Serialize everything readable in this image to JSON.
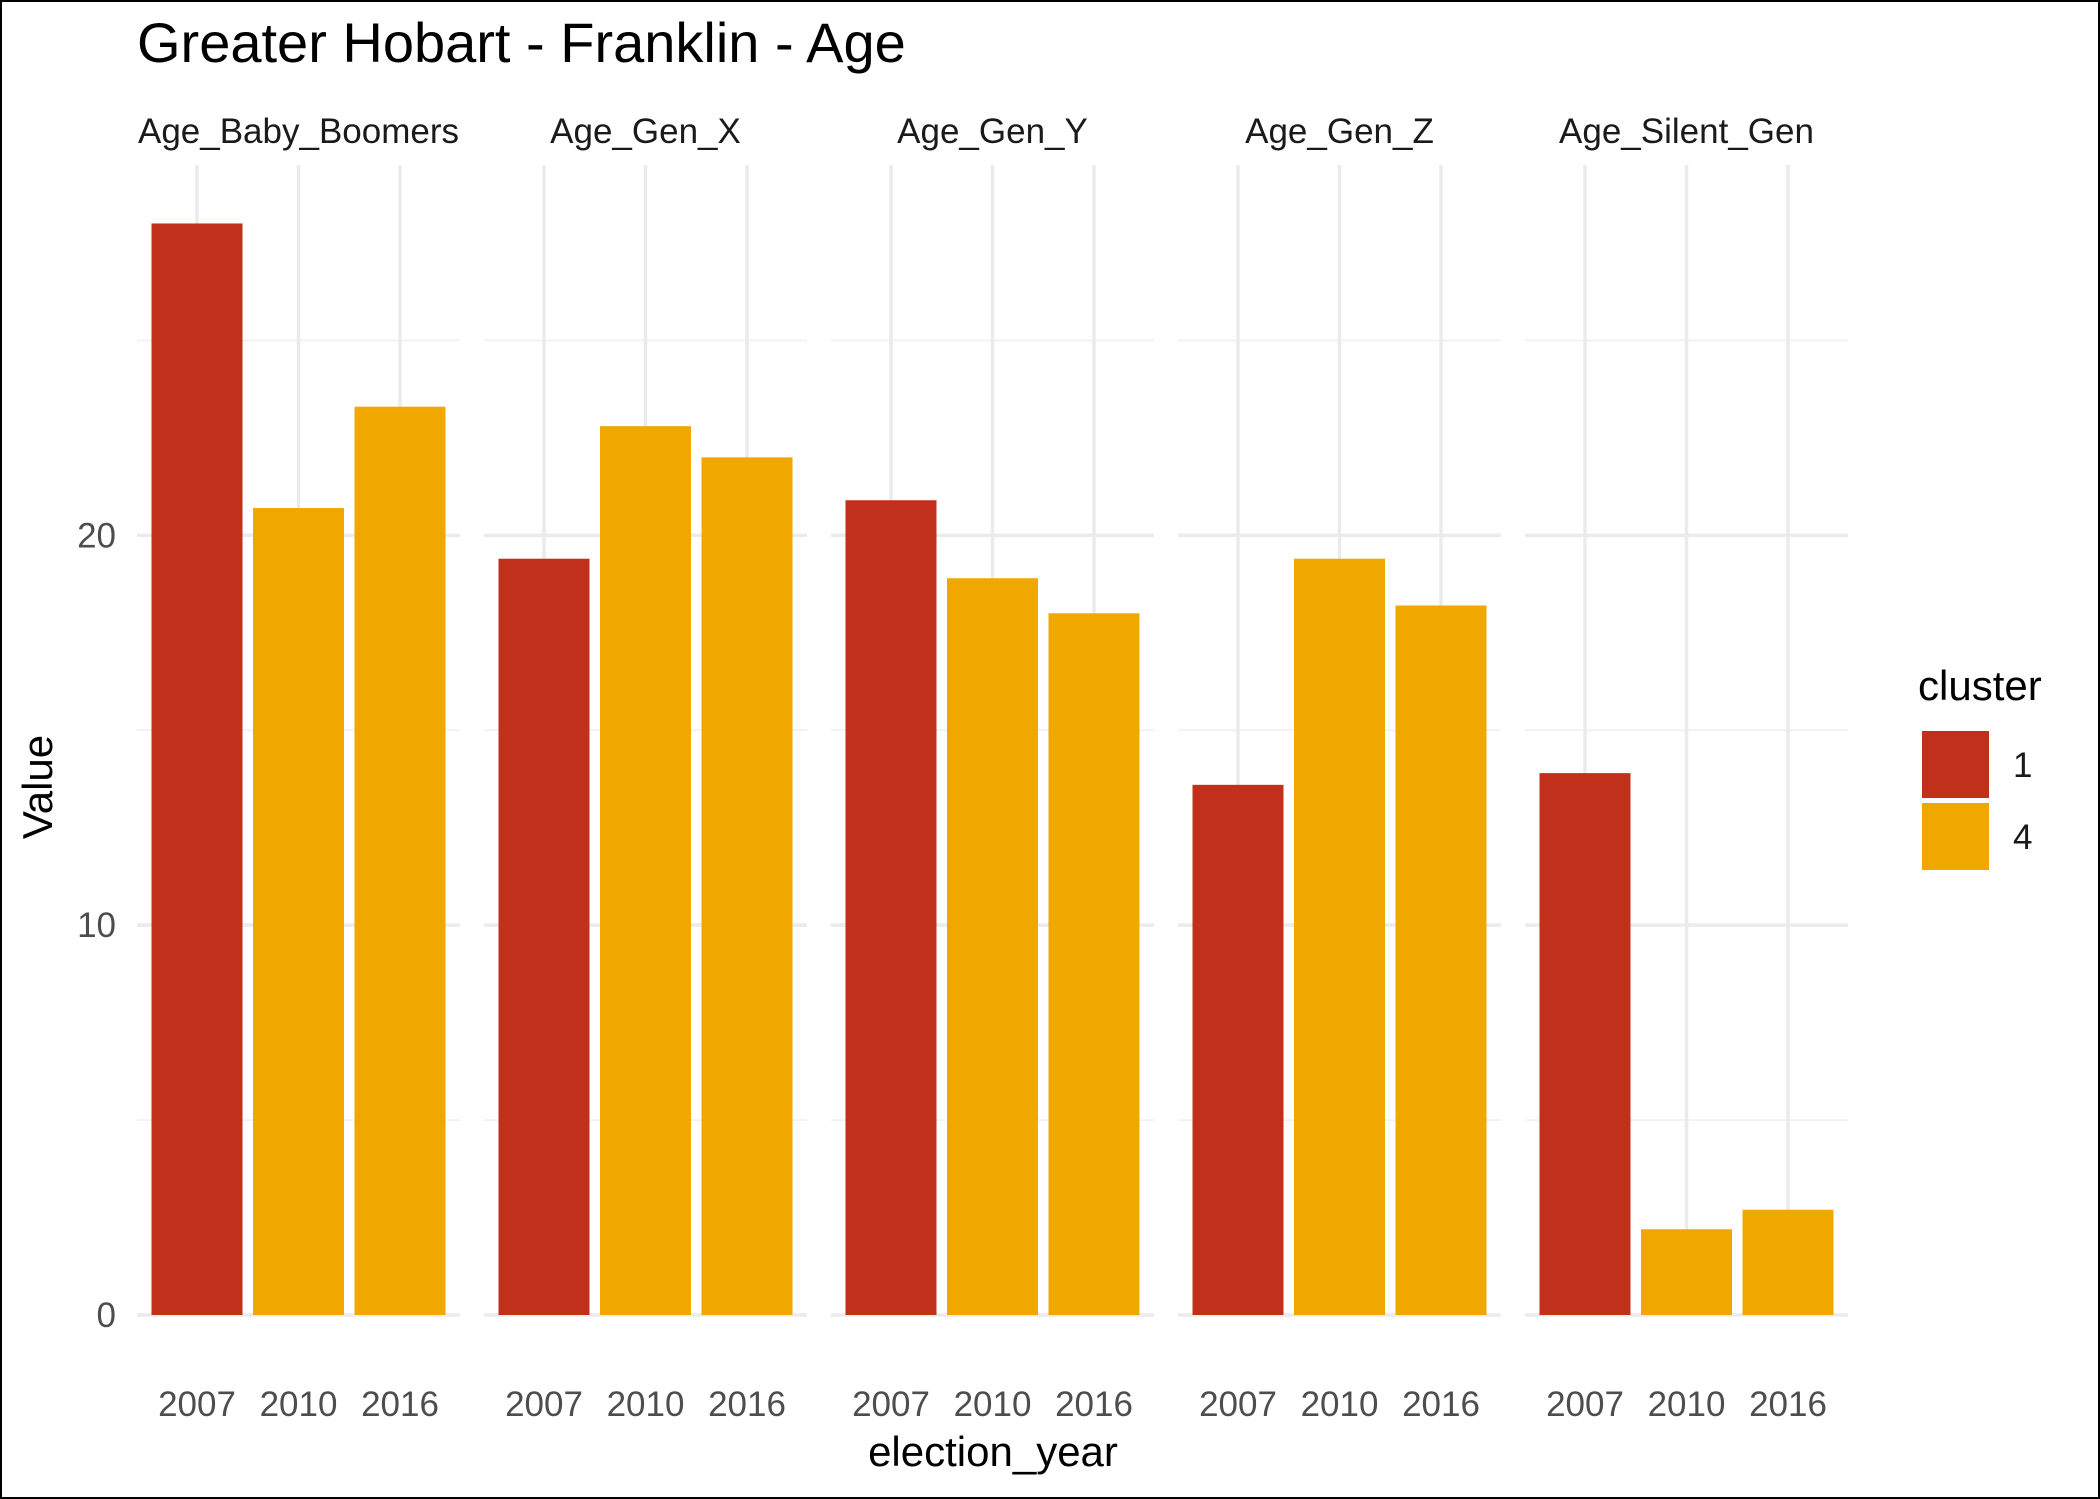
{
  "chart_data": {
    "type": "bar",
    "title": "Greater Hobart - Franklin - Age",
    "xlabel": "election_year",
    "ylabel": "Value",
    "ylim": [
      0,
      29.5
    ],
    "yticks": [
      0,
      10,
      20
    ],
    "categories": [
      "2007",
      "2010",
      "2016"
    ],
    "legend": {
      "title": "cluster",
      "position": "right",
      "entries": [
        {
          "label": "1",
          "color": "#C0301A"
        },
        {
          "label": "4",
          "color": "#F0A800"
        }
      ]
    },
    "grid": true,
    "facets": [
      {
        "label": "Age_Baby_Boomers",
        "values": [
          28.0,
          20.7,
          23.3
        ],
        "clusters": [
          "1",
          "4",
          "4"
        ]
      },
      {
        "label": "Age_Gen_X",
        "values": [
          19.4,
          22.8,
          22.0
        ],
        "clusters": [
          "1",
          "4",
          "4"
        ]
      },
      {
        "label": "Age_Gen_Y",
        "values": [
          20.9,
          18.9,
          18.0
        ],
        "clusters": [
          "1",
          "4",
          "4"
        ]
      },
      {
        "label": "Age_Gen_Z",
        "values": [
          13.6,
          19.4,
          18.2
        ],
        "clusters": [
          "1",
          "4",
          "4"
        ]
      },
      {
        "label": "Age_Silent_Gen",
        "values": [
          13.9,
          2.2,
          2.7
        ],
        "clusters": [
          "1",
          "4",
          "4"
        ]
      }
    ]
  }
}
